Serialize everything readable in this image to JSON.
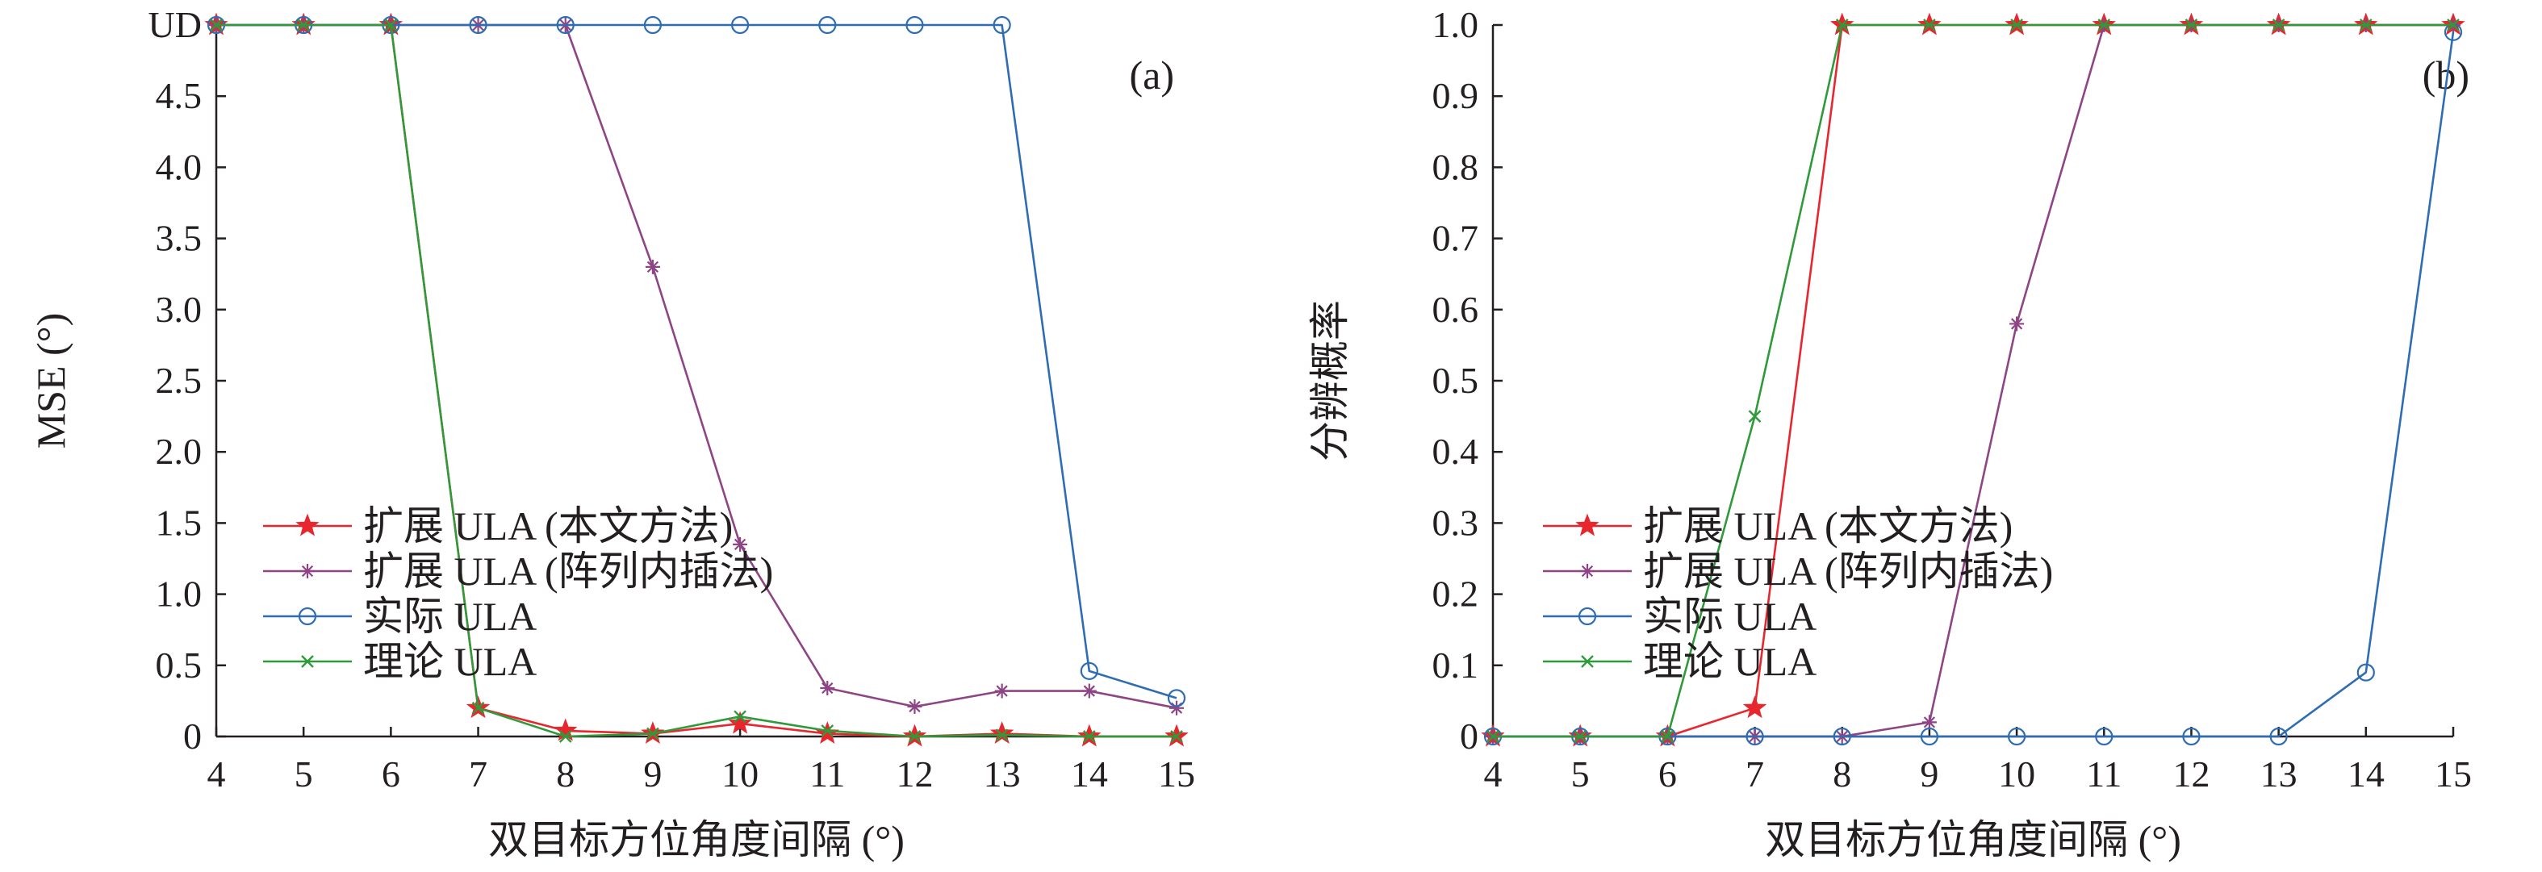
{
  "chart_data": [
    {
      "type": "line",
      "panel_label": "(a)",
      "xlabel": "双目标方位角度间隔 (°)",
      "ylabel": "MSE (°)",
      "x": [
        4,
        5,
        6,
        7,
        8,
        9,
        10,
        11,
        12,
        13,
        14,
        15
      ],
      "xlim": [
        4,
        15
      ],
      "ylim": [
        0,
        5
      ],
      "yticks": [
        0,
        0.5,
        1.0,
        1.5,
        2.0,
        2.5,
        3.0,
        3.5,
        4.0,
        4.5,
        5.0
      ],
      "ytick_labels": [
        "0",
        "0.5",
        "1.0",
        "1.5",
        "2.0",
        "2.5",
        "3.0",
        "3.5",
        "4.0",
        "4.5",
        "UD"
      ],
      "xtick_labels": [
        "4",
        "5",
        "6",
        "7",
        "8",
        "9",
        "10",
        "11",
        "12",
        "13",
        "14",
        "15"
      ],
      "grid": false,
      "legend_position": "lower-left",
      "series": [
        {
          "name": "扩展 ULA (本文方法)",
          "color": "#e8262d",
          "marker": "star",
          "values": [
            5,
            5,
            5,
            0.2,
            0.04,
            0.02,
            0.09,
            0.02,
            0.0,
            0.02,
            0.0,
            0.0
          ]
        },
        {
          "name": "扩展 ULA (阵列内插法)",
          "color": "#8e4585",
          "marker": "asterisk",
          "values": [
            5,
            5,
            5,
            5,
            5,
            3.3,
            1.35,
            0.34,
            0.21,
            0.32,
            0.32,
            0.2
          ]
        },
        {
          "name": "实际 ULA",
          "color": "#2e6db4",
          "marker": "circle",
          "values": [
            5,
            5,
            5,
            5,
            5,
            5,
            5,
            5,
            5,
            5,
            0.46,
            0.27
          ]
        },
        {
          "name": "理论 ULA",
          "color": "#2f9a3a",
          "marker": "x",
          "values": [
            5,
            5,
            5,
            0.2,
            0.0,
            0.02,
            0.14,
            0.04,
            0.0,
            0.01,
            0.0,
            0.0
          ]
        }
      ]
    },
    {
      "type": "line",
      "panel_label": "(b)",
      "xlabel": "双目标方位角度间隔 (°)",
      "ylabel": "分辨概率",
      "x": [
        4,
        5,
        6,
        7,
        8,
        9,
        10,
        11,
        12,
        13,
        14,
        15
      ],
      "xlim": [
        4,
        15
      ],
      "ylim": [
        0,
        1
      ],
      "yticks": [
        0,
        0.1,
        0.2,
        0.3,
        0.4,
        0.5,
        0.6,
        0.7,
        0.8,
        0.9,
        1.0
      ],
      "ytick_labels": [
        "0",
        "0.1",
        "0.2",
        "0.3",
        "0.4",
        "0.5",
        "0.6",
        "0.7",
        "0.8",
        "0.9",
        "1.0"
      ],
      "xtick_labels": [
        "4",
        "5",
        "6",
        "7",
        "8",
        "9",
        "10",
        "11",
        "12",
        "13",
        "14",
        "15"
      ],
      "grid": false,
      "legend_position": "lower-left",
      "series": [
        {
          "name": "扩展 ULA (本文方法)",
          "color": "#e8262d",
          "marker": "star",
          "values": [
            0,
            0,
            0,
            0.04,
            1.0,
            1.0,
            1.0,
            1.0,
            1.0,
            1.0,
            1.0,
            1.0
          ]
        },
        {
          "name": "扩展 ULA (阵列内插法)",
          "color": "#8e4585",
          "marker": "asterisk",
          "values": [
            0,
            0,
            0,
            0,
            0,
            0.02,
            0.58,
            1.0,
            1.0,
            1.0,
            1.0,
            1.0
          ]
        },
        {
          "name": "实际 ULA",
          "color": "#2e6db4",
          "marker": "circle",
          "values": [
            0,
            0,
            0,
            0,
            0,
            0,
            0,
            0,
            0,
            0,
            0.09,
            0.99
          ]
        },
        {
          "name": "理论 ULA",
          "color": "#2f9a3a",
          "marker": "x",
          "values": [
            0,
            0,
            0,
            0.45,
            1.0,
            1.0,
            1.0,
            1.0,
            1.0,
            1.0,
            1.0,
            1.0
          ]
        }
      ]
    }
  ]
}
